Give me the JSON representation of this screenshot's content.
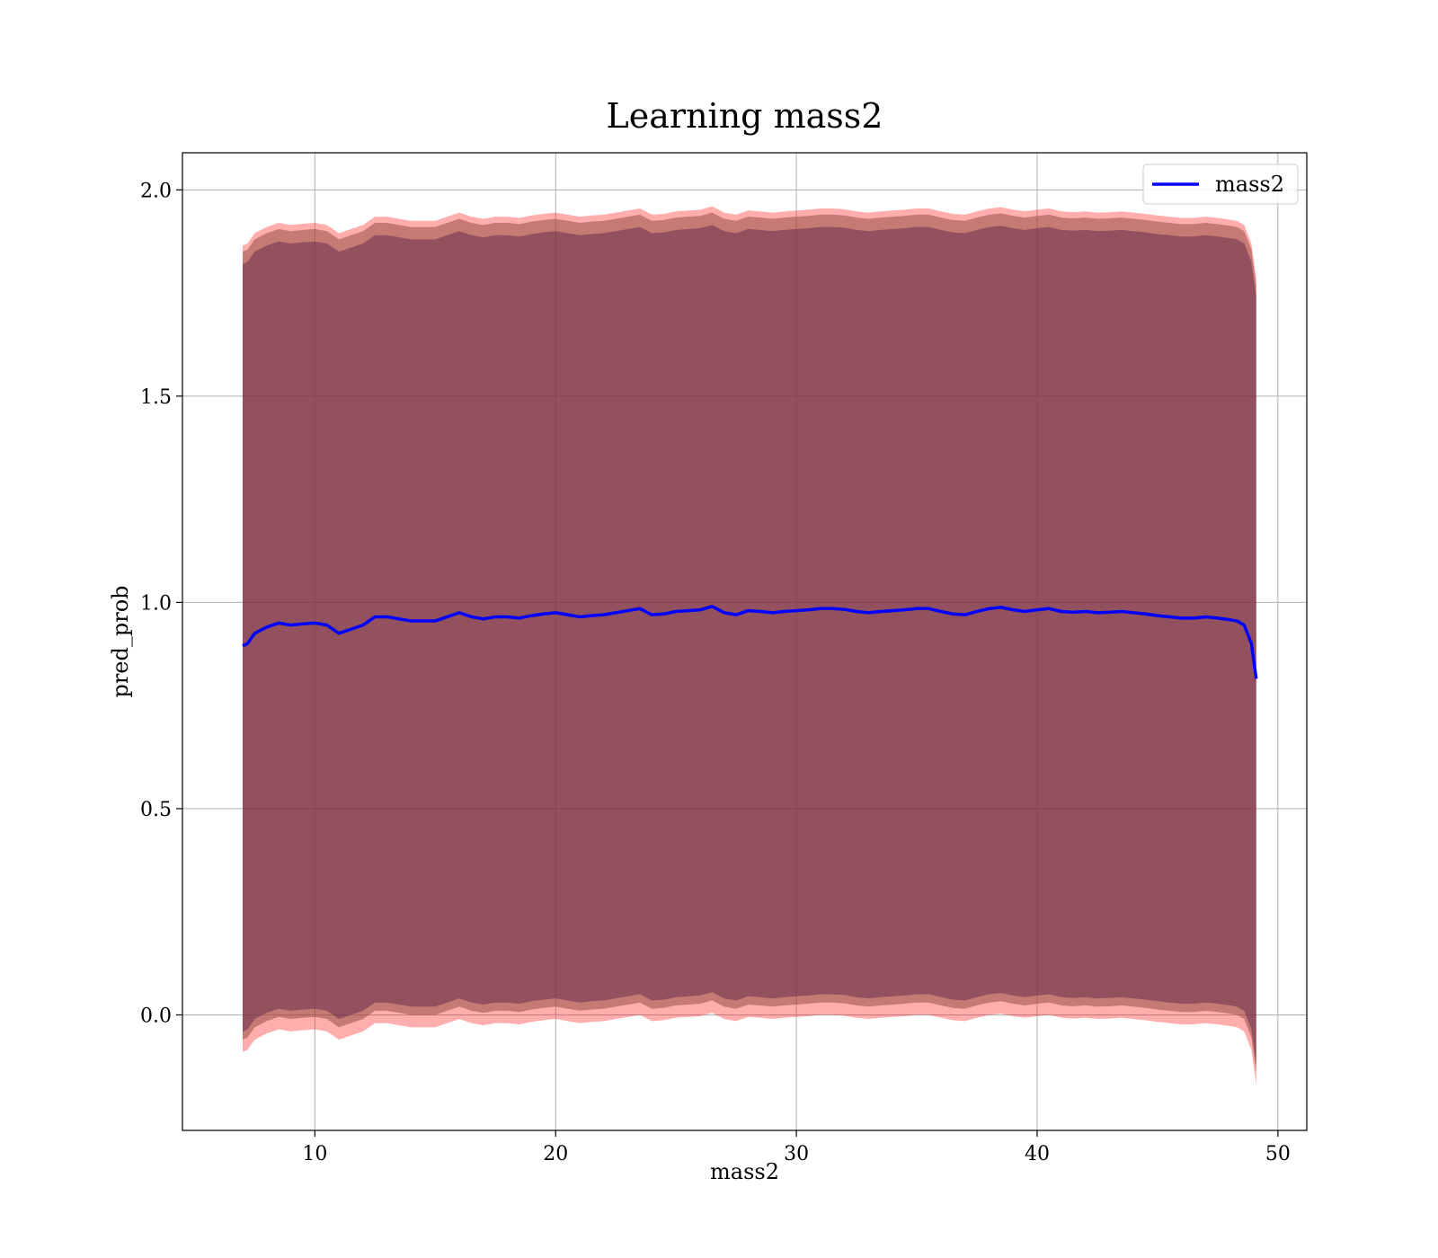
{
  "chart_data": {
    "type": "line",
    "title": "Learning mass2",
    "xlabel": "mass2",
    "ylabel": "pred_prob",
    "xlim": [
      4.5,
      51.2
    ],
    "ylim": [
      -0.28,
      2.09
    ],
    "xticks": [
      10,
      20,
      30,
      40,
      50
    ],
    "yticks": [
      0.0,
      0.5,
      1.0,
      1.5,
      2.0
    ],
    "xtick_labels": [
      "10",
      "20",
      "30",
      "40",
      "50"
    ],
    "ytick_labels": [
      "0.0",
      "0.5",
      "1.0",
      "1.5",
      "2.0"
    ],
    "grid": true,
    "legend_position": "top-right",
    "series": [
      {
        "name": "mass2",
        "color": "#0000ff",
        "x": [
          7.0,
          7.2,
          7.5,
          8.0,
          8.5,
          9.0,
          9.5,
          10.0,
          10.5,
          11.0,
          11.5,
          12.0,
          12.5,
          13.0,
          13.5,
          14.0,
          14.5,
          15.0,
          15.5,
          16.0,
          16.5,
          17.0,
          17.5,
          18.0,
          18.5,
          19.0,
          19.5,
          20.0,
          20.5,
          21.0,
          21.5,
          22.0,
          22.5,
          23.0,
          23.5,
          24.0,
          24.5,
          25.0,
          25.5,
          26.0,
          26.5,
          27.0,
          27.5,
          28.0,
          28.5,
          29.0,
          29.5,
          30.0,
          30.5,
          31.0,
          31.5,
          32.0,
          32.5,
          33.0,
          33.5,
          34.0,
          34.5,
          35.0,
          35.5,
          36.0,
          36.5,
          37.0,
          37.5,
          38.0,
          38.5,
          39.0,
          39.5,
          40.0,
          40.5,
          41.0,
          41.5,
          42.0,
          42.5,
          43.0,
          43.5,
          44.0,
          44.5,
          45.0,
          45.5,
          46.0,
          46.5,
          47.0,
          47.5,
          48.0,
          48.3,
          48.6,
          48.9,
          49.1
        ],
        "y": [
          0.895,
          0.9,
          0.925,
          0.94,
          0.95,
          0.945,
          0.948,
          0.95,
          0.945,
          0.925,
          0.935,
          0.945,
          0.965,
          0.965,
          0.96,
          0.955,
          0.955,
          0.955,
          0.965,
          0.975,
          0.965,
          0.96,
          0.965,
          0.965,
          0.962,
          0.968,
          0.972,
          0.975,
          0.97,
          0.965,
          0.968,
          0.97,
          0.975,
          0.98,
          0.985,
          0.97,
          0.972,
          0.978,
          0.98,
          0.982,
          0.99,
          0.975,
          0.97,
          0.98,
          0.978,
          0.975,
          0.978,
          0.98,
          0.982,
          0.985,
          0.985,
          0.983,
          0.978,
          0.975,
          0.978,
          0.98,
          0.982,
          0.985,
          0.985,
          0.978,
          0.972,
          0.97,
          0.978,
          0.985,
          0.988,
          0.982,
          0.978,
          0.982,
          0.985,
          0.978,
          0.976,
          0.978,
          0.975,
          0.976,
          0.978,
          0.975,
          0.972,
          0.968,
          0.965,
          0.962,
          0.962,
          0.965,
          0.962,
          0.958,
          0.955,
          0.945,
          0.9,
          0.815
        ]
      }
    ],
    "bands": [
      {
        "color": "#ff0000",
        "opacity": 0.32,
        "upper_offset": 0.97,
        "lower_offset": 0.985
      },
      {
        "color": "#8b4a3a",
        "opacity": 0.5,
        "upper_offset": 0.955,
        "lower_offset": 0.955
      },
      {
        "color": "#6a2e4e",
        "opacity": 0.55,
        "upper_offset": 0.925,
        "lower_offset": 0.935
      }
    ]
  }
}
